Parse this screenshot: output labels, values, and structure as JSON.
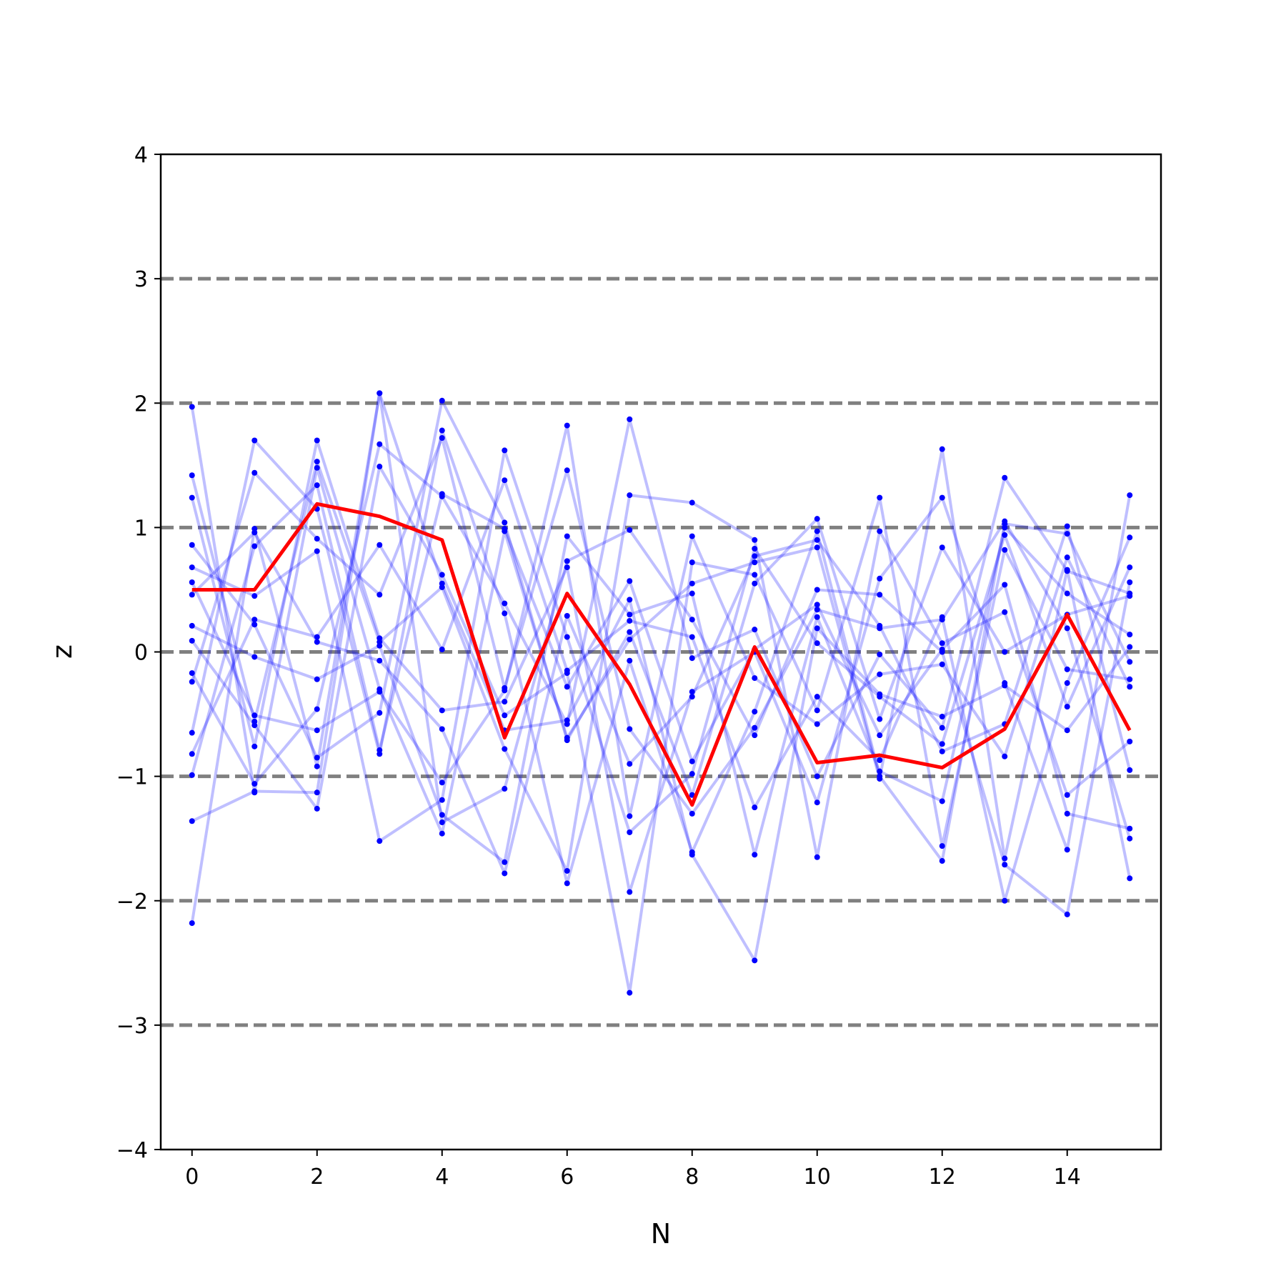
{
  "chart_data": {
    "type": "line",
    "title": "",
    "xlabel": "N",
    "ylabel": "z",
    "xlim": [
      -0.5,
      15.5
    ],
    "ylim": [
      -4,
      4
    ],
    "x_ticks": [
      0,
      2,
      4,
      6,
      8,
      10,
      12,
      14
    ],
    "y_ticks": [
      -4,
      -3,
      -2,
      -1,
      0,
      1,
      2,
      3,
      4
    ],
    "y_tick_labels": [
      "−4",
      "−3",
      "−2",
      "−1",
      "0",
      "1",
      "2",
      "3",
      "4"
    ],
    "reference_lines": {
      "y": [
        -3,
        -2,
        -1,
        0,
        1,
        2,
        3
      ],
      "color": "#808080",
      "style": "dashed"
    },
    "grid": false,
    "legend": "none",
    "background_series_color": "#0000ff",
    "highlight_color": "#ff0000",
    "x": [
      0,
      1,
      2,
      3,
      4,
      5,
      6,
      7,
      8,
      9,
      10,
      11,
      12,
      13,
      14,
      15
    ],
    "background_series": [
      [
        1.97,
        -1.13,
        1.48,
        -0.3,
        -1.46,
        0.97,
        -0.69,
        0.1,
        0.55,
        0.72,
        0.84,
        -1.02,
        1.63,
        -1.66,
        0.66,
        -1.82
      ],
      [
        -2.18,
        0.99,
        -0.92,
        2.08,
        -1.37,
        -1.1,
        0.73,
        0.98,
        0.26,
        -0.67,
        0.5,
        0.46,
        0.0,
        -1.71,
        -2.11,
        0.56
      ],
      [
        1.42,
        -0.56,
        1.53,
        0.08,
        0.52,
        -0.78,
        -1.76,
        1.26,
        1.2,
        0.9,
        -1.65,
        0.97,
        0.07,
        0.32,
        -1.15,
        -0.72
      ],
      [
        -0.65,
        1.7,
        1.15,
        -0.82,
        1.78,
        0.31,
        -1.86,
        -0.07,
        -1.61,
        -0.48,
        0.97,
        -1.0,
        -1.68,
        1.03,
        0.95,
        -0.08
      ],
      [
        0.86,
        0.22,
        -0.85,
        -0.49,
        2.02,
        1.04,
        -0.71,
        0.16,
        -1.15,
        0.55,
        1.07,
        -0.54,
        0.84,
        0.0,
        0.3,
        0.45
      ],
      [
        -0.17,
        -1.06,
        -0.46,
        1.67,
        1.25,
        0.39,
        -0.58,
        1.87,
        -0.05,
        0.18,
        -1.0,
        -0.02,
        -0.61,
        1.4,
        0.65,
        0.47
      ],
      [
        0.46,
        0.96,
        0.08,
        -0.07,
        -0.62,
        -1.78,
        0.29,
        -0.9,
        -0.36,
        0.77,
        0.9,
        0.21,
        -0.8,
        -0.58,
        1.01,
        -0.95
      ],
      [
        1.24,
        -0.76,
        1.7,
        0.11,
        -0.47,
        -0.4,
        0.68,
        -1.93,
        -0.32,
        0.0,
        -1.21,
        0.59,
        1.24,
        -0.25,
        -1.59,
        1.26
      ],
      [
        -0.24,
        1.44,
        0.91,
        0.46,
        1.72,
        -0.29,
        1.46,
        -0.62,
        -1.3,
        -0.61,
        0.34,
        0.19,
        0.26,
        1.05,
        0.19,
        -1.5
      ],
      [
        0.09,
        -0.59,
        -1.26,
        1.49,
        0.62,
        -0.51,
        -0.17,
        -2.74,
        0.72,
        0.62,
        -0.47,
        1.24,
        -1.56,
        0.82,
        -0.14,
        -0.22
      ],
      [
        -1.36,
        -1.12,
        -1.13,
        2.08,
        0.55,
        -0.63,
        -0.55,
        0.42,
        -1.63,
        -2.48,
        0.19,
        -0.34,
        -0.52,
        -0.27,
        -0.63,
        0.04
      ],
      [
        0.68,
        0.45,
        0.81,
        -1.52,
        -1.19,
        1.62,
        0.12,
        -1.45,
        -0.98,
        0.83,
        0.07,
        -0.36,
        -0.74,
        0.94,
        -0.44,
        0.68
      ],
      [
        -0.82,
        0.26,
        0.12,
        0.86,
        0.02,
        1.38,
        -0.15,
        0.25,
        0.12,
        -1.25,
        -0.36,
        -0.87,
        0.28,
        -2.0,
        -0.25,
        0.92
      ],
      [
        0.56,
        -0.51,
        -0.63,
        -0.32,
        -1.05,
        -0.31,
        1.82,
        -1.32,
        0.93,
        -0.21,
        -0.58,
        -0.18,
        -0.1,
        -0.84,
        0.76,
        -0.28
      ],
      [
        -0.99,
        0.85,
        1.34,
        -0.79,
        1.27,
        0.99,
        -0.28,
        0.57,
        -0.88,
        0.02,
        0.38,
        -0.67,
        0.02,
        0.54,
        -1.3,
        -1.42
      ],
      [
        0.21,
        -0.04,
        -0.22,
        0.05,
        -1.31,
        -1.69,
        0.93,
        0.3,
        0.47,
        -1.63,
        0.28,
        -0.96,
        -1.2,
        1.0,
        0.47,
        0.14
      ]
    ],
    "highlight_series": [
      0.5,
      0.5,
      1.19,
      1.09,
      0.9,
      -0.69,
      0.47,
      -0.26,
      -1.23,
      0.04,
      -0.89,
      -0.83,
      -0.93,
      -0.62,
      0.3,
      -0.63
    ]
  }
}
